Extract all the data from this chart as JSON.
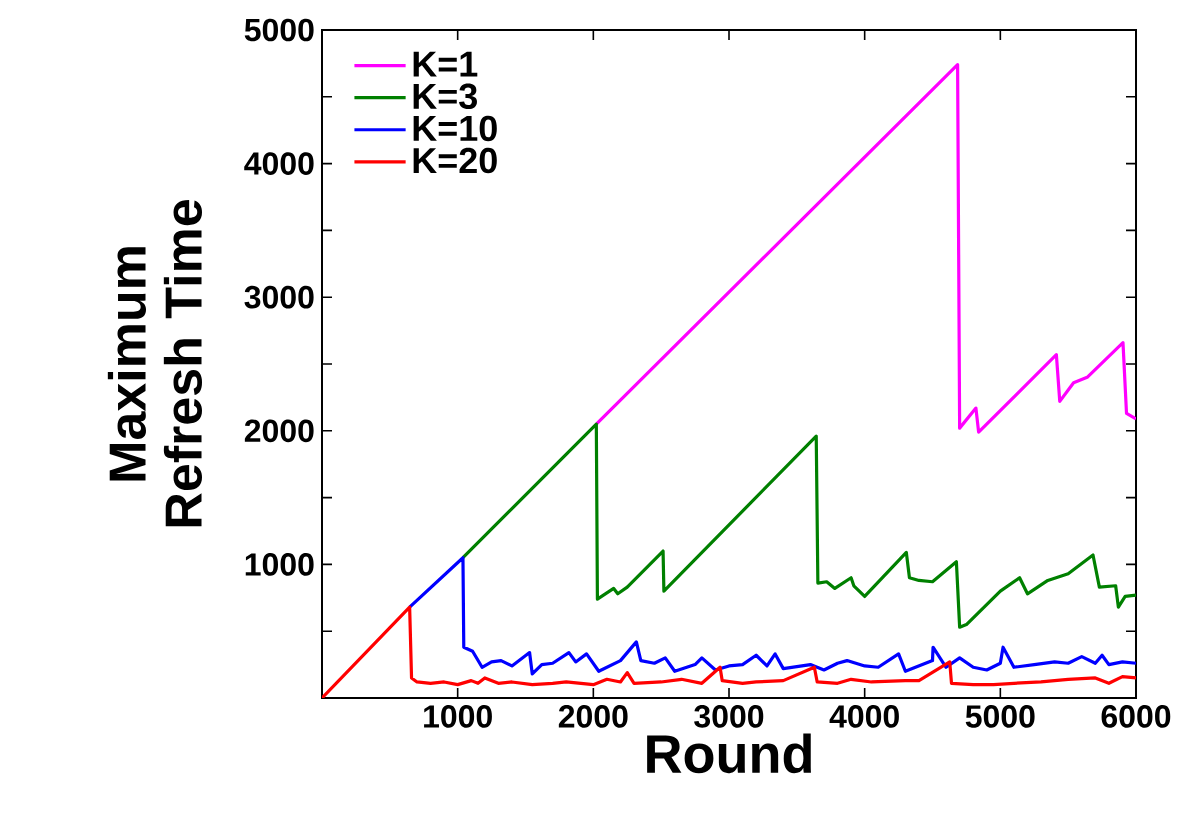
{
  "chart_data": {
    "type": "line",
    "xlabel": "Round",
    "ylabel": "Maximum Refresh Time",
    "xlim": [
      0,
      6000
    ],
    "ylim": [
      0,
      5000
    ],
    "xticks": [
      1000,
      2000,
      3000,
      4000,
      5000,
      6000
    ],
    "yticks": [
      {
        "value": 500,
        "label": null
      },
      1000,
      {
        "value": 1500,
        "label": null
      },
      2000,
      {
        "value": 2500,
        "label": null
      },
      3000,
      {
        "value": 3500,
        "label": null
      },
      4000,
      {
        "value": 4500,
        "label": null
      },
      5000
    ],
    "legend": "top left",
    "grid": false,
    "series": [
      {
        "name": "K=1",
        "color": "#ff00ff",
        "x": [
          2022,
          4685,
          4700,
          4820,
          4840,
          5413,
          5438,
          5540,
          5640,
          5904,
          5930,
          6000
        ],
        "values": [
          2050,
          4740,
          2020,
          2170,
          1990,
          2570,
          2220,
          2360,
          2400,
          2660,
          2130,
          2090
        ]
      },
      {
        "name": "K=3",
        "color": "#008000",
        "x": [
          1039,
          2022,
          2030,
          2150,
          2180,
          2250,
          2514,
          2520,
          3643,
          3655,
          3720,
          3780,
          3900,
          3920,
          4000,
          4307,
          4330,
          4400,
          4500,
          4676,
          4700,
          4750,
          5000,
          5142,
          5200,
          5350,
          5500,
          5683,
          5730,
          5850,
          5870,
          5920,
          6000
        ],
        "values": [
          1050,
          2050,
          740,
          820,
          780,
          830,
          1100,
          800,
          1960,
          860,
          870,
          820,
          900,
          840,
          760,
          1090,
          900,
          880,
          870,
          1020,
          530,
          550,
          800,
          900,
          780,
          880,
          930,
          1070,
          830,
          840,
          680,
          760,
          770
        ]
      },
      {
        "name": "K=10",
        "color": "#0000ff",
        "x": [
          646,
          1039,
          1045,
          1110,
          1180,
          1250,
          1320,
          1400,
          1530,
          1550,
          1620,
          1700,
          1820,
          1870,
          1950,
          2040,
          2200,
          2317,
          2350,
          2450,
          2530,
          2600,
          2750,
          2800,
          2900,
          3000,
          3100,
          3200,
          3280,
          3340,
          3400,
          3600,
          3700,
          3800,
          3870,
          4000,
          4100,
          4250,
          4300,
          4500,
          4504,
          4600,
          4700,
          4800,
          4900,
          5000,
          5020,
          5100,
          5250,
          5400,
          5500,
          5600,
          5700,
          5750,
          5800,
          5900,
          6000
        ],
        "values": [
          680,
          1050,
          380,
          350,
          230,
          270,
          280,
          240,
          340,
          180,
          250,
          260,
          340,
          270,
          330,
          200,
          280,
          420,
          280,
          260,
          300,
          200,
          250,
          300,
          210,
          240,
          250,
          320,
          240,
          330,
          220,
          250,
          210,
          260,
          280,
          240,
          230,
          330,
          200,
          280,
          380,
          230,
          300,
          230,
          210,
          260,
          380,
          230,
          250,
          270,
          260,
          310,
          260,
          320,
          250,
          270,
          260
        ]
      },
      {
        "name": "K=20",
        "color": "#ff0000",
        "x": [
          0,
          646,
          660,
          700,
          800,
          900,
          1000,
          1100,
          1150,
          1200,
          1300,
          1400,
          1550,
          1700,
          1800,
          2000,
          2100,
          2200,
          2250,
          2300,
          2500,
          2650,
          2800,
          2934,
          2950,
          3100,
          3200,
          3400,
          3629,
          3650,
          3800,
          3900,
          4050,
          4300,
          4400,
          4627,
          4640,
          4800,
          4950,
          5100,
          5300,
          5500,
          5700,
          5800,
          5900,
          6000
        ],
        "values": [
          0,
          680,
          150,
          120,
          110,
          120,
          100,
          130,
          110,
          150,
          110,
          120,
          100,
          110,
          120,
          100,
          140,
          120,
          190,
          110,
          120,
          140,
          110,
          230,
          130,
          110,
          120,
          130,
          230,
          120,
          110,
          140,
          120,
          130,
          130,
          270,
          110,
          100,
          100,
          110,
          120,
          140,
          150,
          110,
          160,
          150
        ]
      }
    ]
  }
}
